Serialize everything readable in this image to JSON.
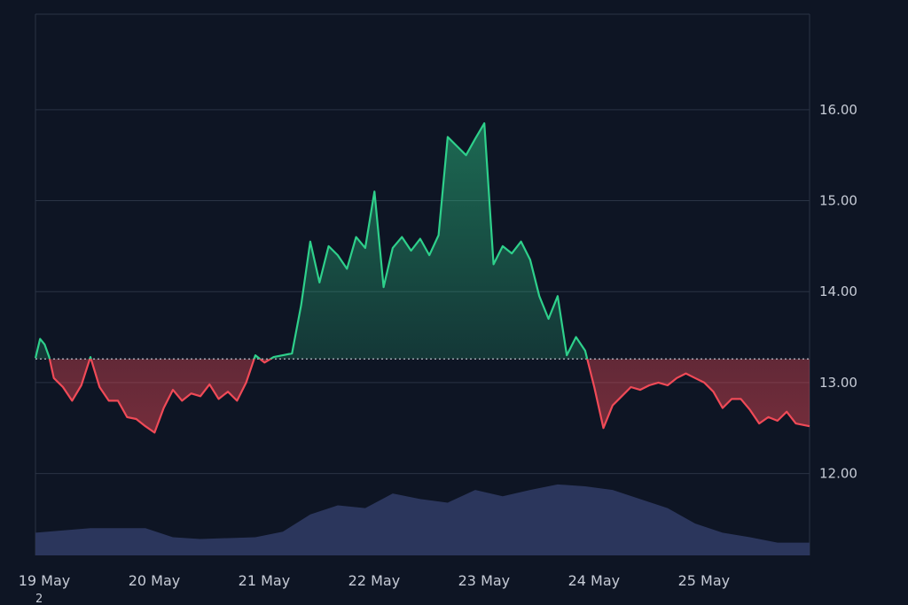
{
  "chart_data": {
    "type": "area",
    "baseline": 13.26,
    "ylim": [
      11.1,
      17.05
    ],
    "y_ticks": [
      "12.00",
      "13.00",
      "14.00",
      "15.00",
      "16.00"
    ],
    "y_tick_values": [
      12,
      13,
      14,
      15,
      16
    ],
    "x_range": [
      "2024-05-19T00:00",
      "2024-05-26T01:00"
    ],
    "x_ticks": [
      "19 May",
      "20 May",
      "21 May",
      "22 May",
      "23 May",
      "24 May",
      "25 May"
    ],
    "x_tick_values": [
      "2024-05-19T00:00",
      "2024-05-20T00:00",
      "2024-05-21T00:00",
      "2024-05-22T00:00",
      "2024-05-23T00:00",
      "2024-05-24T00:00",
      "2024-05-25T00:00"
    ],
    "footnote": "2",
    "colors": {
      "background": "#0e1524",
      "grid": "#2a3345",
      "up": "#2ed08b",
      "down": "#f04a57",
      "volume": "#2d3860",
      "baseline": "#c9cfda"
    },
    "price_series": {
      "x": [
        "2024-05-19T00:00",
        "2024-05-19T01:00",
        "2024-05-19T02:00",
        "2024-05-19T03:00",
        "2024-05-19T04:00",
        "2024-05-19T06:00",
        "2024-05-19T08:00",
        "2024-05-19T10:00",
        "2024-05-19T12:00",
        "2024-05-19T14:00",
        "2024-05-19T16:00",
        "2024-05-19T18:00",
        "2024-05-19T20:00",
        "2024-05-19T22:00",
        "2024-05-20T00:00",
        "2024-05-20T02:00",
        "2024-05-20T04:00",
        "2024-05-20T06:00",
        "2024-05-20T08:00",
        "2024-05-20T10:00",
        "2024-05-20T12:00",
        "2024-05-20T14:00",
        "2024-05-20T16:00",
        "2024-05-20T18:00",
        "2024-05-20T20:00",
        "2024-05-20T22:00",
        "2024-05-21T00:00",
        "2024-05-21T02:00",
        "2024-05-21T04:00",
        "2024-05-21T06:00",
        "2024-05-21T08:00",
        "2024-05-21T10:00",
        "2024-05-21T12:00",
        "2024-05-21T14:00",
        "2024-05-21T16:00",
        "2024-05-21T18:00",
        "2024-05-21T20:00",
        "2024-05-21T22:00",
        "2024-05-22T00:00",
        "2024-05-22T02:00",
        "2024-05-22T04:00",
        "2024-05-22T06:00",
        "2024-05-22T08:00",
        "2024-05-22T10:00",
        "2024-05-22T12:00",
        "2024-05-22T14:00",
        "2024-05-22T16:00",
        "2024-05-22T18:00",
        "2024-05-22T20:00",
        "2024-05-22T22:00",
        "2024-05-23T00:00",
        "2024-05-23T02:00",
        "2024-05-23T04:00",
        "2024-05-23T06:00",
        "2024-05-23T08:00",
        "2024-05-23T10:00",
        "2024-05-23T12:00",
        "2024-05-23T14:00",
        "2024-05-23T16:00",
        "2024-05-23T18:00",
        "2024-05-23T20:00",
        "2024-05-23T22:00",
        "2024-05-24T00:00",
        "2024-05-24T02:00",
        "2024-05-24T04:00",
        "2024-05-24T06:00",
        "2024-05-24T08:00",
        "2024-05-24T10:00",
        "2024-05-24T12:00",
        "2024-05-24T14:00",
        "2024-05-24T16:00",
        "2024-05-24T18:00",
        "2024-05-24T20:00",
        "2024-05-24T22:00",
        "2024-05-25T00:00",
        "2024-05-25T02:00",
        "2024-05-25T04:00",
        "2024-05-25T06:00",
        "2024-05-25T08:00",
        "2024-05-25T10:00",
        "2024-05-25T12:00",
        "2024-05-25T14:00",
        "2024-05-25T16:00",
        "2024-05-25T18:00",
        "2024-05-25T20:00",
        "2024-05-25T22:00",
        "2024-05-26T01:00"
      ],
      "values": [
        13.27,
        13.48,
        13.42,
        13.28,
        13.05,
        12.95,
        12.8,
        12.97,
        13.28,
        12.95,
        12.8,
        12.8,
        12.62,
        12.6,
        12.52,
        12.45,
        12.72,
        12.92,
        12.8,
        12.88,
        12.85,
        12.98,
        12.82,
        12.9,
        12.8,
        13.0,
        13.3,
        13.22,
        13.28,
        13.3,
        13.32,
        13.85,
        14.55,
        14.1,
        14.5,
        14.4,
        14.25,
        14.6,
        14.48,
        15.1,
        14.05,
        14.48,
        14.6,
        14.45,
        14.58,
        14.4,
        14.62,
        15.7,
        15.6,
        15.5,
        15.68,
        15.85,
        14.3,
        14.5,
        14.42,
        14.55,
        14.35,
        13.95,
        13.7,
        13.95,
        13.3,
        13.5,
        13.35,
        12.95,
        12.5,
        12.75,
        12.85,
        12.95,
        12.92,
        12.97,
        13.0,
        12.97,
        13.05,
        13.1,
        13.05,
        13.0,
        12.9,
        12.72,
        12.82,
        12.82,
        12.7,
        12.55,
        12.62,
        12.58,
        12.68,
        12.55,
        12.52
      ]
    },
    "volume_series": {
      "x": [
        "2024-05-19T00:00",
        "2024-05-19T12:00",
        "2024-05-20T00:00",
        "2024-05-20T06:00",
        "2024-05-20T12:00",
        "2024-05-21T00:00",
        "2024-05-21T06:00",
        "2024-05-21T12:00",
        "2024-05-21T18:00",
        "2024-05-22T00:00",
        "2024-05-22T06:00",
        "2024-05-22T12:00",
        "2024-05-22T18:00",
        "2024-05-23T00:00",
        "2024-05-23T06:00",
        "2024-05-23T12:00",
        "2024-05-23T18:00",
        "2024-05-24T00:00",
        "2024-05-24T06:00",
        "2024-05-24T12:00",
        "2024-05-24T18:00",
        "2024-05-25T00:00",
        "2024-05-25T06:00",
        "2024-05-25T12:00",
        "2024-05-25T18:00",
        "2024-05-26T01:00"
      ],
      "values": [
        11.35,
        11.4,
        11.4,
        11.3,
        11.28,
        11.3,
        11.36,
        11.55,
        11.65,
        11.62,
        11.78,
        11.72,
        11.68,
        11.82,
        11.75,
        11.82,
        11.88,
        11.86,
        11.82,
        11.72,
        11.62,
        11.45,
        11.35,
        11.3,
        11.24,
        11.24
      ]
    }
  }
}
